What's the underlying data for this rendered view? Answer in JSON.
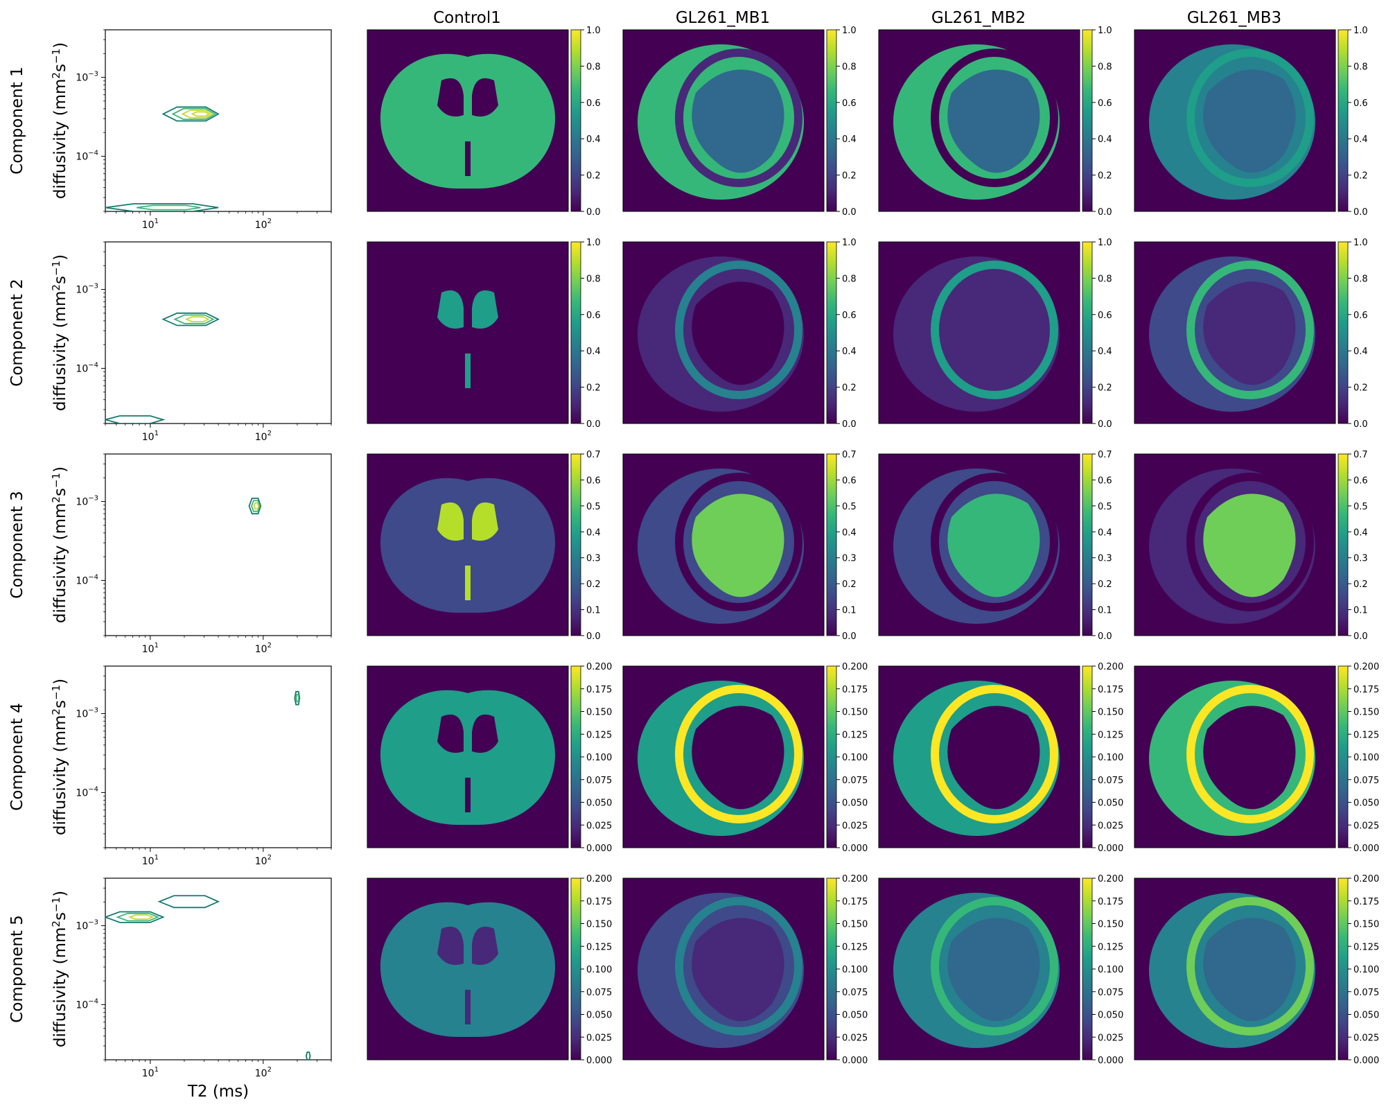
{
  "column_titles": [
    "Control1",
    "GL261_MB1",
    "GL261_MB2",
    "GL261_MB3"
  ],
  "row_labels": [
    "Component 1",
    "Component 2",
    "Component 3",
    "Component 4",
    "Component 5"
  ],
  "ylabel_main": "diffusivity (mm",
  "ylabel_sup1": "2",
  "ylabel_mid": "s",
  "ylabel_sup2": "−1",
  "ylabel_end": ")",
  "xlabel": "T2 (ms)",
  "spectrum_ticks": {
    "x": [
      {
        "base": "10",
        "exp": "1",
        "value": 10
      },
      {
        "base": "10",
        "exp": "2",
        "value": 100
      }
    ],
    "y": [
      {
        "base": "10",
        "exp": "−4",
        "value": 0.0001
      },
      {
        "base": "10",
        "exp": "−3",
        "value": 0.001
      }
    ]
  },
  "colors": {
    "contour_dark": "#127a6e",
    "contour_mid": "#3fb47a",
    "contour_light": "#c8d832",
    "viridis": [
      "#440154",
      "#482878",
      "#3e4a89",
      "#31688e",
      "#26828e",
      "#1f9e89",
      "#35b779",
      "#6ece58",
      "#b5de2b",
      "#fde725"
    ]
  },
  "chart_data": [
    {
      "type": "contour",
      "panel": "Component 1 spectrum",
      "xscale": "log",
      "yscale": "log",
      "xlim": [
        4,
        400
      ],
      "ylim": [
        2e-05,
        0.004
      ],
      "peaks": [
        {
          "t2": [
            13,
            40
          ],
          "d": [
            0.00028,
            0.00042
          ],
          "levels": 4
        },
        {
          "t2": [
            4,
            40
          ],
          "d": [
            2e-05,
            2.5e-05
          ],
          "levels": 2
        }
      ]
    },
    {
      "type": "contour",
      "panel": "Component 2 spectrum",
      "xscale": "log",
      "yscale": "log",
      "xlim": [
        4,
        400
      ],
      "ylim": [
        2e-05,
        0.004
      ],
      "peaks": [
        {
          "t2": [
            13,
            40
          ],
          "d": [
            0.00035,
            0.0005
          ],
          "levels": 3
        },
        {
          "t2": [
            4,
            13
          ],
          "d": [
            2e-05,
            2.5e-05
          ],
          "levels": 1
        }
      ]
    },
    {
      "type": "contour",
      "panel": "Component 3 spectrum",
      "xscale": "log",
      "yscale": "log",
      "xlim": [
        4,
        400
      ],
      "ylim": [
        2e-05,
        0.004
      ],
      "peaks": [
        {
          "t2": [
            75,
            95
          ],
          "d": [
            0.0007,
            0.0011
          ],
          "levels": 3
        }
      ]
    },
    {
      "type": "contour",
      "panel": "Component 4 spectrum",
      "xscale": "log",
      "yscale": "log",
      "xlim": [
        4,
        400
      ],
      "ylim": [
        2e-05,
        0.004
      ],
      "peaks": [
        {
          "t2": [
            190,
            210
          ],
          "d": [
            0.0013,
            0.0019
          ],
          "levels": 2
        }
      ]
    },
    {
      "type": "contour",
      "panel": "Component 5 spectrum",
      "xscale": "log",
      "yscale": "log",
      "xlim": [
        4,
        400
      ],
      "ylim": [
        2e-05,
        0.004
      ],
      "peaks": [
        {
          "t2": [
            12,
            40
          ],
          "d": [
            0.0017,
            0.0024
          ],
          "levels": 1
        },
        {
          "t2": [
            4,
            13
          ],
          "d": [
            0.0011,
            0.0015
          ],
          "levels": 3
        },
        {
          "t2": [
            240,
            260
          ],
          "d": [
            2e-05,
            2.5e-05
          ],
          "levels": 1
        }
      ]
    },
    {
      "type": "heatmap",
      "panel": "component weight maps",
      "colormap": "viridis",
      "rows": [
        {
          "component": "Component 1",
          "clim": [
            0,
            1.0
          ],
          "ticks": [
            "0.0",
            "0.2",
            "0.4",
            "0.6",
            "0.8",
            "1.0"
          ]
        },
        {
          "component": "Component 2",
          "clim": [
            0,
            1.0
          ],
          "ticks": [
            "0.0",
            "0.2",
            "0.4",
            "0.6",
            "0.8",
            "1.0"
          ]
        },
        {
          "component": "Component 3",
          "clim": [
            0,
            0.7
          ],
          "ticks": [
            "0.0",
            "0.1",
            "0.2",
            "0.3",
            "0.4",
            "0.5",
            "0.6",
            "0.7"
          ]
        },
        {
          "component": "Component 4",
          "clim": [
            0,
            0.2
          ],
          "ticks": [
            "0.000",
            "0.025",
            "0.050",
            "0.075",
            "0.100",
            "0.125",
            "0.150",
            "0.175",
            "0.200"
          ]
        },
        {
          "component": "Component 5",
          "clim": [
            0,
            0.2
          ],
          "ticks": [
            "0.000",
            "0.025",
            "0.050",
            "0.075",
            "0.100",
            "0.125",
            "0.150",
            "0.175",
            "0.200"
          ]
        }
      ],
      "maps": [
        [
          {
            "sample": "Control1",
            "brain": 0.68,
            "tumor": 0,
            "rim": 0,
            "ventricles": 0.0,
            "shape": "coronal"
          },
          {
            "sample": "GL261_MB1",
            "brain": 0.72,
            "tumor": 0.32,
            "rim": 0.1,
            "ventricles": 0,
            "shape": "round"
          },
          {
            "sample": "GL261_MB2",
            "brain": 0.62,
            "tumor": 0.3,
            "rim": 0.05,
            "ventricles": 0,
            "shape": "round"
          },
          {
            "sample": "GL261_MB3",
            "brain": 0.45,
            "tumor": 0.28,
            "rim": 0.55,
            "ventricles": 0,
            "shape": "round"
          }
        ],
        [
          {
            "sample": "Control1",
            "brain": 0.05,
            "tumor": 0,
            "rim": 0,
            "ventricles": 0.5,
            "shape": "coronal"
          },
          {
            "sample": "GL261_MB1",
            "brain": 0.06,
            "tumor": 0.05,
            "rim": 0.45,
            "ventricles": 0,
            "shape": "round"
          },
          {
            "sample": "GL261_MB2",
            "brain": 0.12,
            "tumor": 0.1,
            "rim": 0.6,
            "ventricles": 0,
            "shape": "round"
          },
          {
            "sample": "GL261_MB3",
            "brain": 0.25,
            "tumor": 0.1,
            "rim": 0.65,
            "ventricles": 0,
            "shape": "round"
          }
        ],
        [
          {
            "sample": "Control1",
            "brain": 0.14,
            "tumor": 0,
            "rim": 0,
            "ventricles": 0.62,
            "shape": "coronal"
          },
          {
            "sample": "GL261_MB1",
            "brain": 0.12,
            "tumor": 0.55,
            "rim": 0.0,
            "ventricles": 0,
            "shape": "round"
          },
          {
            "sample": "GL261_MB2",
            "brain": 0.12,
            "tumor": 0.5,
            "rim": 0.0,
            "ventricles": 0,
            "shape": "round"
          },
          {
            "sample": "GL261_MB3",
            "brain": 0.08,
            "tumor": 0.52,
            "rim": 0.0,
            "ventricles": 0,
            "shape": "round"
          }
        ],
        [
          {
            "sample": "Control1",
            "brain": 0.11,
            "tumor": 0,
            "rim": 0,
            "ventricles": 0.0,
            "shape": "coronal"
          },
          {
            "sample": "GL261_MB1",
            "brain": 0.12,
            "tumor": 0.0,
            "rim": 0.19,
            "ventricles": 0,
            "shape": "round"
          },
          {
            "sample": "GL261_MB2",
            "brain": 0.12,
            "tumor": 0.01,
            "rim": 0.19,
            "ventricles": 0,
            "shape": "round"
          },
          {
            "sample": "GL261_MB3",
            "brain": 0.13,
            "tumor": 0.0,
            "rim": 0.19,
            "ventricles": 0,
            "shape": "round"
          }
        ],
        [
          {
            "sample": "Control1",
            "brain": 0.09,
            "tumor": 0,
            "rim": 0,
            "ventricles": 0.03,
            "shape": "coronal"
          },
          {
            "sample": "GL261_MB1",
            "brain": 0.05,
            "tumor": 0.03,
            "rim": 0.08,
            "ventricles": 0,
            "shape": "round"
          },
          {
            "sample": "GL261_MB2",
            "brain": 0.08,
            "tumor": 0.06,
            "rim": 0.14,
            "ventricles": 0,
            "shape": "round"
          },
          {
            "sample": "GL261_MB3",
            "brain": 0.09,
            "tumor": 0.07,
            "rim": 0.16,
            "ventricles": 0,
            "shape": "round"
          }
        ]
      ]
    }
  ]
}
